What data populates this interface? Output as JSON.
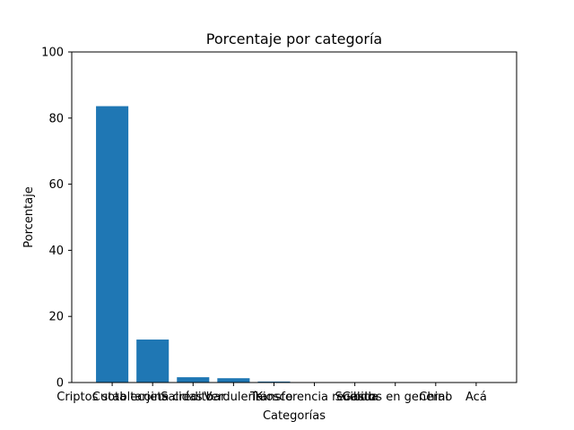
{
  "chart_data": {
    "type": "bar",
    "title": "Porcentaje por categoría",
    "xlabel": "Categorías",
    "ylabel": "Porcentaje",
    "ylim": [
      0,
      100
    ],
    "yticks": [
      0,
      20,
      40,
      60,
      80,
      100
    ],
    "categories": [
      "Criptos stablecoins",
      "Cuota tarjeta crédito",
      "Salidas bar",
      "Verdulería",
      "Kiosco",
      "Transferencia recibida",
      "Sueldo",
      "Gastos en general",
      "Chino",
      "Acá"
    ],
    "values": [
      83.6,
      13.0,
      1.6,
      1.3,
      0.3,
      0.1,
      0.05,
      0.05,
      0.05,
      0.05
    ],
    "bar_color": "#1f77b4",
    "grid": false
  }
}
